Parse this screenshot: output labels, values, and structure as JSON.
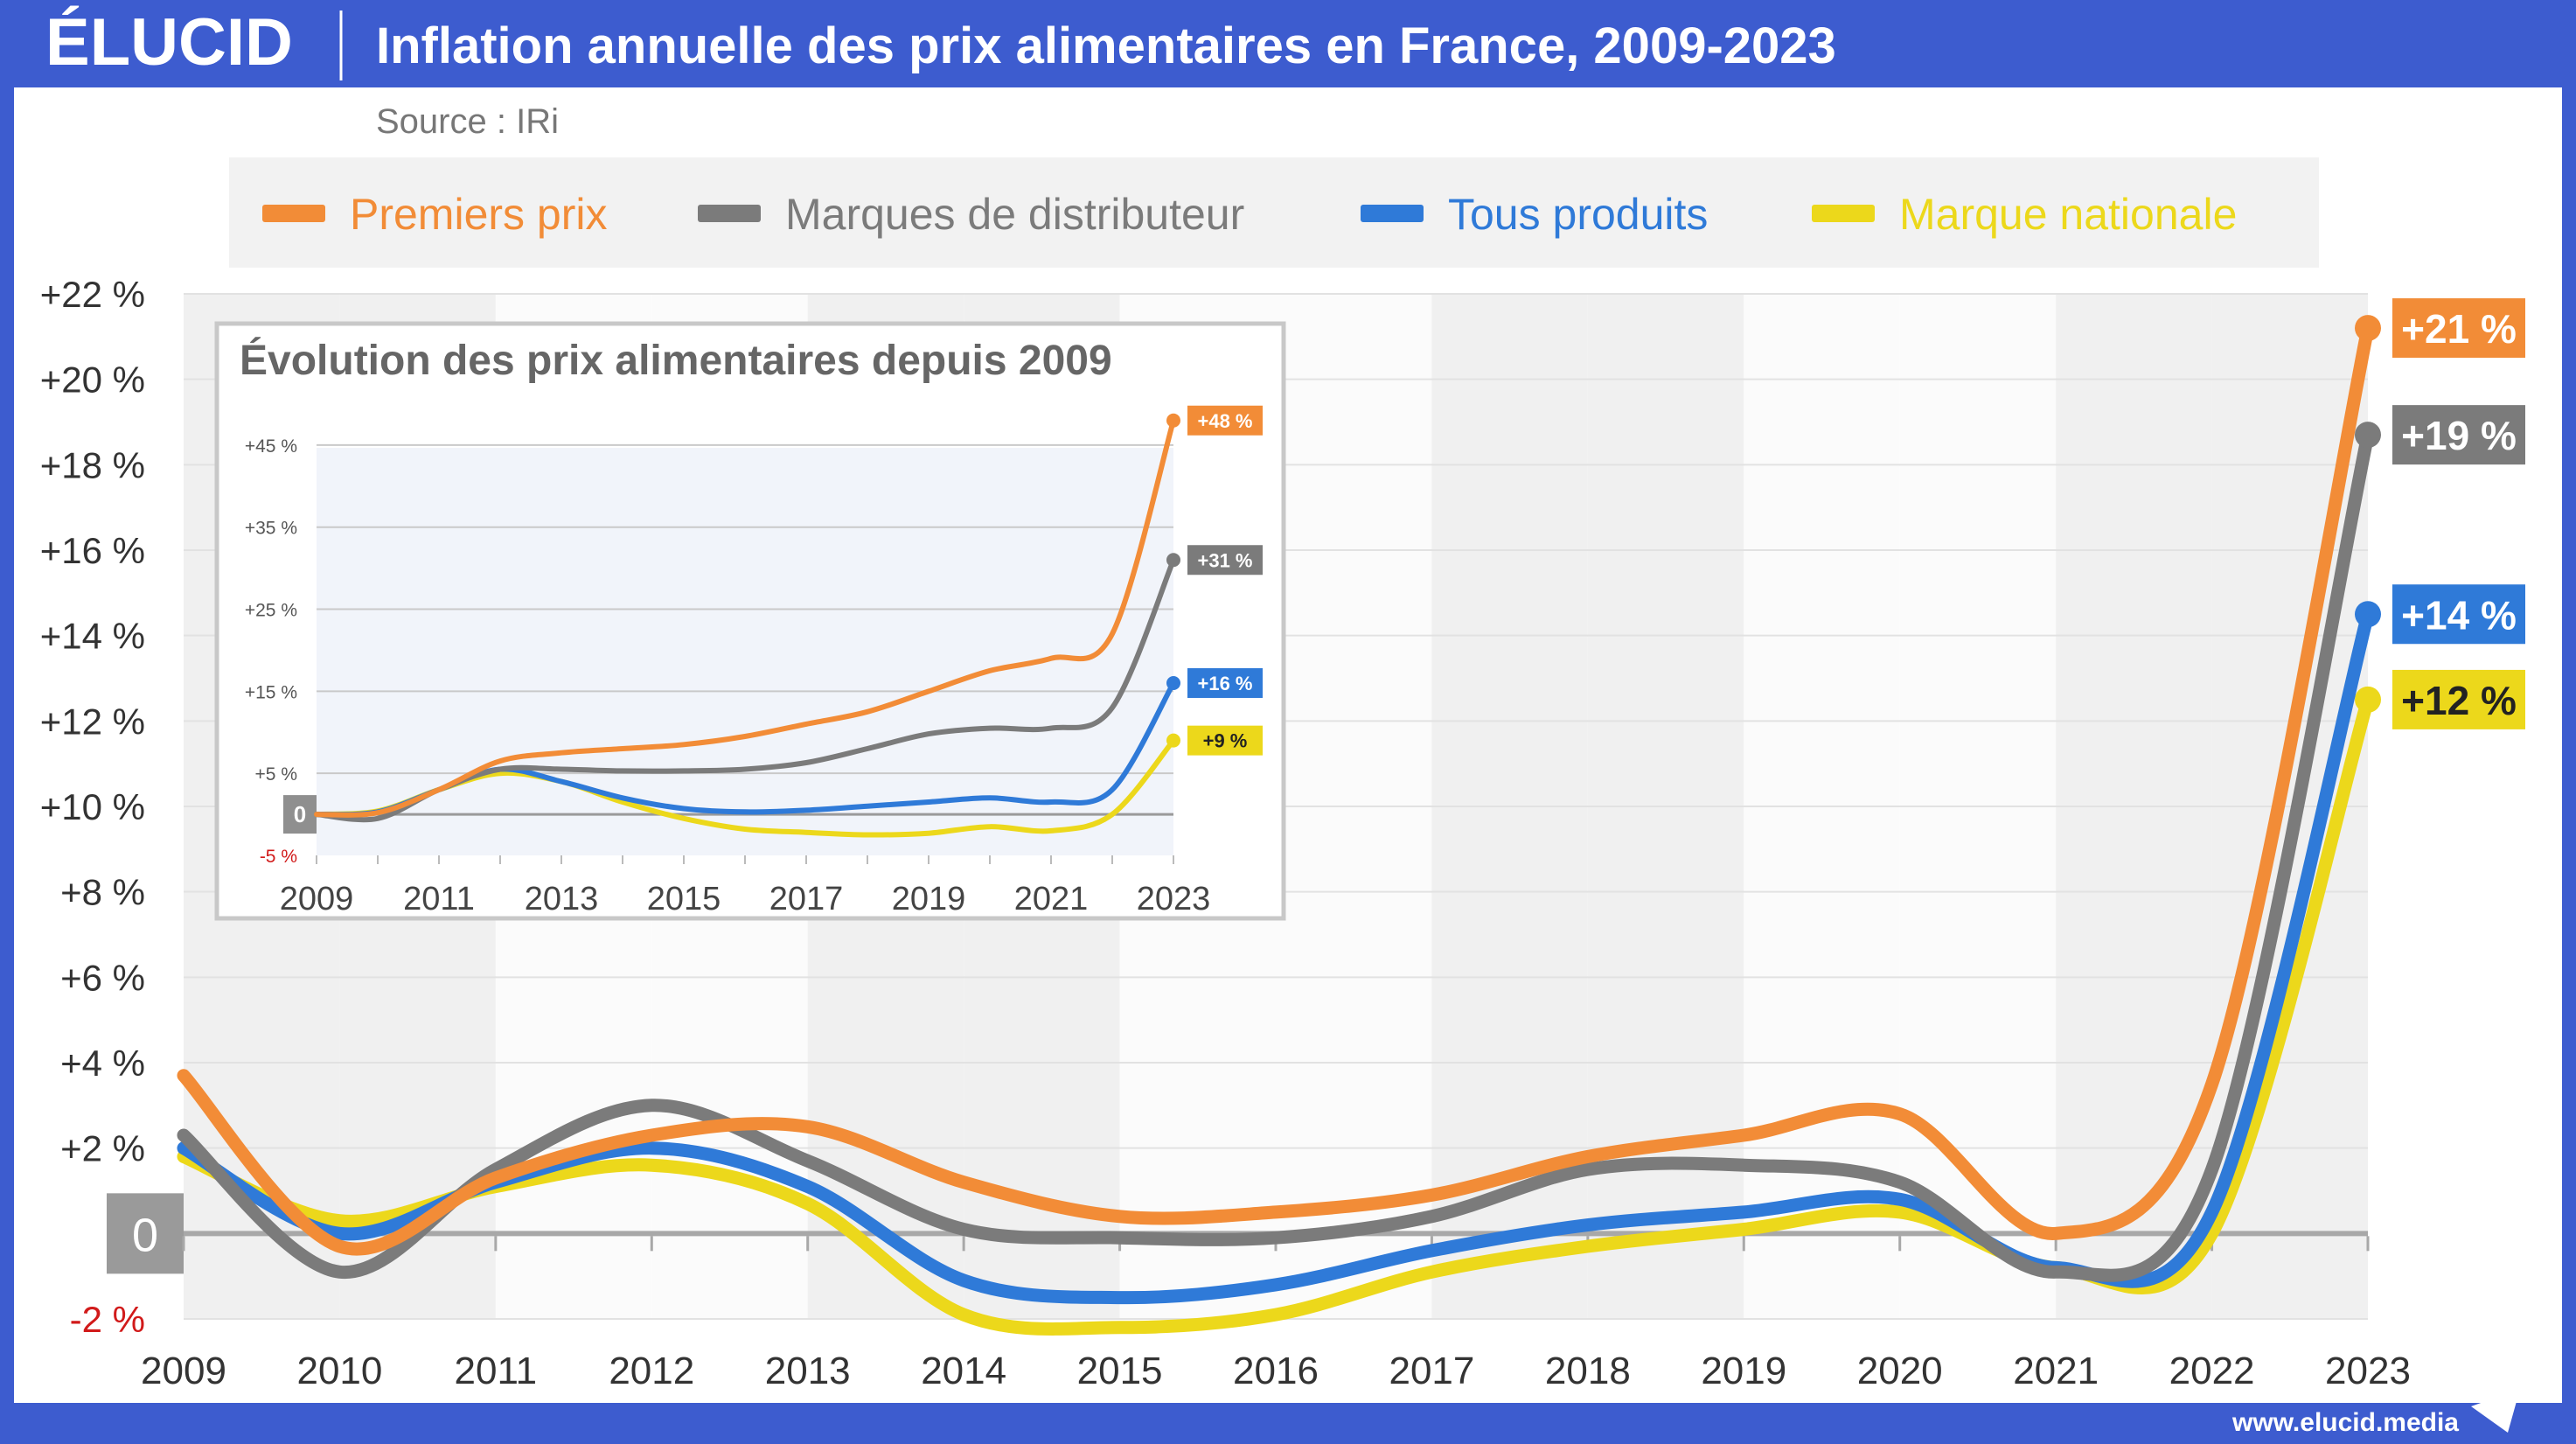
{
  "brand": {
    "logo": "ÉLUCID",
    "footer_url": "www.elucid.media"
  },
  "header": {
    "title": "Inflation annuelle des prix alimentaires en France, 2009-2023",
    "source": "Source : IRi"
  },
  "colors": {
    "header_bg": "#3d5ccf",
    "premiers_prix": "#f28c37",
    "marques_distributeur": "#7b7b7b",
    "tous_produits": "#2f7ad8",
    "marque_nationale": "#ecd81b",
    "negative_tick": "#d11a1a"
  },
  "chart_data": [
    {
      "type": "line",
      "title": "",
      "xlabel": "",
      "ylabel": "",
      "x": [
        2009,
        2010,
        2011,
        2012,
        2013,
        2014,
        2015,
        2016,
        2017,
        2018,
        2019,
        2020,
        2021,
        2022,
        2023
      ],
      "x_ticks": [
        "2009",
        "2010",
        "2011",
        "2012",
        "2013",
        "2014",
        "2015",
        "2016",
        "2017",
        "2018",
        "2019",
        "2020",
        "2021",
        "2022",
        "2023"
      ],
      "ylim": [
        -2,
        22
      ],
      "y_ticks": [
        "-2 %",
        "0",
        "+2 %",
        "+4 %",
        "+6 %",
        "+8 %",
        "+10 %",
        "+12 %",
        "+14 %",
        "+16 %",
        "+18 %",
        "+20 %",
        "+22 %"
      ],
      "y_tick_values": [
        -2,
        0,
        2,
        4,
        6,
        8,
        10,
        12,
        14,
        16,
        18,
        20,
        22
      ],
      "grid": true,
      "legend": "top",
      "series": [
        {
          "name": "Premiers prix",
          "color_key": "premiers_prix",
          "values": [
            3.7,
            -0.3,
            1.3,
            2.3,
            2.5,
            1.2,
            0.4,
            0.5,
            0.9,
            1.8,
            2.3,
            2.8,
            0.0,
            3.5,
            21.2
          ],
          "end_label": "+21 %"
        },
        {
          "name": "Marques de distributeur",
          "color_key": "marques_distributeur",
          "values": [
            2.3,
            -0.9,
            1.5,
            3.0,
            1.7,
            0.1,
            -0.1,
            -0.1,
            0.4,
            1.5,
            1.6,
            1.2,
            -0.9,
            1.5,
            18.7
          ],
          "end_label": "+19 %"
        },
        {
          "name": "Tous produits",
          "color_key": "tous_produits",
          "values": [
            2.0,
            0.0,
            1.2,
            2.0,
            1.1,
            -1.1,
            -1.5,
            -1.2,
            -0.4,
            0.2,
            0.5,
            0.8,
            -0.8,
            0.5,
            14.5
          ],
          "end_label": "+14 %"
        },
        {
          "name": "Marque nationale",
          "color_key": "marque_nationale",
          "values": [
            1.8,
            0.3,
            1.1,
            1.6,
            0.7,
            -1.9,
            -2.2,
            -1.9,
            -0.9,
            -0.3,
            0.1,
            0.5,
            -0.8,
            0.0,
            12.5
          ],
          "end_label": "+12 %"
        }
      ]
    },
    {
      "type": "line",
      "title": "Évolution des prix alimentaires depuis 2009",
      "xlabel": "",
      "ylabel": "",
      "x": [
        2009,
        2010,
        2011,
        2012,
        2013,
        2014,
        2015,
        2016,
        2017,
        2018,
        2019,
        2020,
        2021,
        2022,
        2023
      ],
      "x_ticks": [
        "2009",
        "2011",
        "2013",
        "2015",
        "2017",
        "2019",
        "2021",
        "2023"
      ],
      "ylim": [
        -5,
        50
      ],
      "y_ticks": [
        "-5 %",
        "0",
        "+5 %",
        "+15 %",
        "+25 %",
        "+35 %",
        "+45 %"
      ],
      "y_tick_values": [
        -5,
        0,
        5,
        15,
        25,
        35,
        45
      ],
      "grid": true,
      "series": [
        {
          "color_key": "premiers_prix",
          "values": [
            0,
            0.2,
            3,
            6.5,
            7.5,
            8,
            8.5,
            9.5,
            11,
            12.5,
            15,
            17.5,
            19,
            22,
            48
          ],
          "end_label": "+48 %"
        },
        {
          "color_key": "marques_distributeur",
          "values": [
            0,
            -0.5,
            3,
            5.5,
            5.5,
            5.3,
            5.3,
            5.5,
            6.3,
            8,
            9.8,
            10.5,
            10.5,
            13,
            31
          ],
          "end_label": "+31 %"
        },
        {
          "color_key": "tous_produits",
          "values": [
            0,
            0.3,
            3,
            5.5,
            4,
            2,
            0.7,
            0.3,
            0.5,
            1,
            1.5,
            2,
            1.5,
            3,
            16
          ],
          "end_label": "+16 %"
        },
        {
          "color_key": "marque_nationale",
          "values": [
            0,
            0.4,
            3,
            5,
            4,
            1.5,
            -0.5,
            -1.8,
            -2.2,
            -2.5,
            -2.3,
            -1.5,
            -2,
            0,
            9
          ],
          "end_label": "+9 %"
        }
      ]
    }
  ]
}
